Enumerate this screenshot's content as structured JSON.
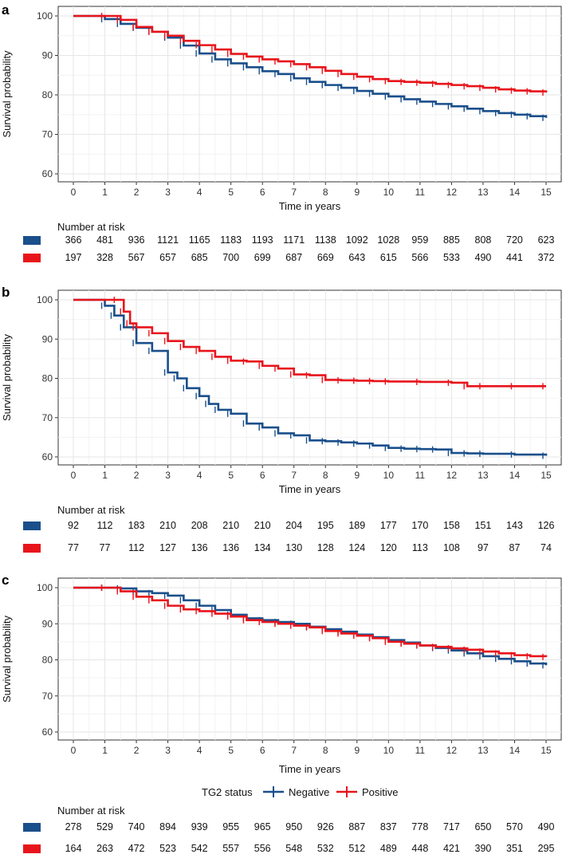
{
  "colors": {
    "negative": "#1a4f8b",
    "positive": "#e8141b",
    "grid_major": "#e6e6e6",
    "grid_minor": "#f3f3f3",
    "border": "#333333"
  },
  "legend": {
    "title": "TG2 status",
    "items": [
      "Negative",
      "Positive"
    ]
  },
  "chart_data": [
    {
      "type": "line",
      "panel": "a",
      "xlabel": "Time in years",
      "ylabel": "Survival probability",
      "xlim": [
        0,
        15
      ],
      "ylim": [
        60,
        100
      ],
      "x_ticks": [
        0,
        1,
        2,
        3,
        4,
        5,
        6,
        7,
        8,
        9,
        10,
        11,
        12,
        13,
        14,
        15
      ],
      "y_ticks": [
        60,
        70,
        80,
        90,
        100
      ],
      "series": [
        {
          "name": "Negative",
          "color": "#1a4f8b",
          "x": [
            0,
            0.7,
            1,
            1.5,
            2,
            2.5,
            3,
            3.5,
            4,
            4.5,
            5,
            5.5,
            6,
            6.5,
            7,
            7.5,
            8,
            8.5,
            9,
            9.5,
            10,
            10.5,
            11,
            11.5,
            12,
            12.5,
            13,
            13.5,
            14,
            14.5,
            15
          ],
          "y": [
            100,
            100,
            99.2,
            98,
            97,
            96,
            94.5,
            92.5,
            90.5,
            89,
            88,
            87,
            86,
            85.3,
            84.2,
            83.3,
            82.5,
            81.8,
            81,
            80.3,
            79.6,
            78.9,
            78.3,
            77.7,
            77.1,
            76.5,
            75.9,
            75.4,
            75,
            74.6,
            74.2
          ]
        },
        {
          "name": "Positive",
          "color": "#e8141b",
          "x": [
            0,
            0.7,
            1,
            1.5,
            2,
            2.5,
            3,
            3.5,
            4,
            4.5,
            5,
            5.5,
            6,
            6.5,
            7,
            7.5,
            8,
            8.5,
            9,
            9.5,
            10,
            10.5,
            11,
            11.5,
            12,
            12.5,
            13,
            13.5,
            14,
            14.5,
            15
          ],
          "y": [
            100,
            100,
            100,
            99,
            97.2,
            96,
            95,
            93.7,
            92.6,
            91.5,
            90.4,
            89.7,
            89,
            88.5,
            87.8,
            87,
            86.1,
            85.3,
            84.6,
            84,
            83.5,
            83.3,
            83.1,
            82.8,
            82.5,
            82.2,
            81.8,
            81.4,
            81.1,
            80.9,
            80.6
          ]
        }
      ],
      "risk_table": {
        "title": "Number at risk",
        "rows": [
          {
            "name": "Negative",
            "values": [
              366,
              481,
              936,
              1121,
              1165,
              1183,
              1193,
              1171,
              1138,
              1092,
              1028,
              959,
              885,
              808,
              720,
              623
            ]
          },
          {
            "name": "Positive",
            "values": [
              197,
              328,
              567,
              657,
              685,
              700,
              699,
              687,
              669,
              643,
              615,
              566,
              533,
              490,
              441,
              372
            ]
          }
        ]
      }
    },
    {
      "type": "line",
      "panel": "b",
      "xlabel": "Time in years",
      "ylabel": "Survival probability",
      "xlim": [
        0,
        15
      ],
      "ylim": [
        60,
        100
      ],
      "x_ticks": [
        0,
        1,
        2,
        3,
        4,
        5,
        6,
        7,
        8,
        9,
        10,
        11,
        12,
        13,
        14,
        15
      ],
      "y_ticks": [
        60,
        70,
        80,
        90,
        100
      ],
      "series": [
        {
          "name": "Negative",
          "color": "#1a4f8b",
          "x": [
            0,
            0.7,
            1,
            1.3,
            1.6,
            2,
            2.5,
            3,
            3.3,
            3.6,
            4,
            4.3,
            4.6,
            5,
            5.5,
            6,
            6.5,
            7,
            7.5,
            8,
            8.5,
            9,
            9.5,
            10,
            10.5,
            11,
            11.5,
            12,
            12.5,
            13,
            14,
            15
          ],
          "y": [
            100,
            100,
            98.5,
            96,
            93,
            89,
            87,
            81.5,
            80,
            77.5,
            75.5,
            73.5,
            72,
            71,
            68.5,
            67.5,
            66,
            65.5,
            64.2,
            64,
            63.7,
            63.4,
            62.9,
            62.3,
            62.1,
            62,
            61.9,
            61,
            60.9,
            60.8,
            60.6,
            60.3
          ]
        },
        {
          "name": "Positive",
          "color": "#e8141b",
          "x": [
            0,
            0.7,
            1.4,
            1.6,
            1.8,
            2,
            2.5,
            3,
            3.5,
            4,
            4.5,
            5,
            5.5,
            6,
            6.5,
            7,
            7.5,
            8,
            8.5,
            9,
            9.5,
            10,
            11,
            12,
            12.5,
            13,
            14,
            15
          ],
          "y": [
            100,
            100,
            100,
            97,
            94,
            93,
            91.5,
            89.5,
            88,
            87,
            85.5,
            84.5,
            84.3,
            83.2,
            82.5,
            81,
            80.8,
            79.6,
            79.5,
            79.4,
            79.3,
            79.2,
            79.1,
            78.9,
            78,
            78,
            78,
            78
          ]
        }
      ],
      "risk_table": {
        "title": "Number at risk",
        "rows": [
          {
            "name": "Negative",
            "values": [
              92,
              112,
              183,
              210,
              208,
              210,
              210,
              204,
              195,
              189,
              177,
              170,
              158,
              151,
              143,
              126
            ]
          },
          {
            "name": "Positive",
            "values": [
              77,
              77,
              112,
              127,
              136,
              136,
              134,
              130,
              128,
              124,
              120,
              113,
              108,
              97,
              87,
              74
            ]
          }
        ]
      }
    },
    {
      "type": "line",
      "panel": "c",
      "xlabel": "Time in years",
      "ylabel": "Survival probability",
      "xlim": [
        0,
        15
      ],
      "ylim": [
        60,
        100
      ],
      "x_ticks": [
        0,
        1,
        2,
        3,
        4,
        5,
        6,
        7,
        8,
        9,
        10,
        11,
        12,
        13,
        14,
        15
      ],
      "y_ticks": [
        60,
        70,
        80,
        90,
        100
      ],
      "series": [
        {
          "name": "Negative",
          "color": "#1a4f8b",
          "x": [
            0,
            0.7,
            1,
            1.5,
            2,
            2.5,
            3,
            3.5,
            4,
            4.5,
            5,
            5.5,
            6,
            6.5,
            7,
            7.5,
            8,
            8.5,
            9,
            9.5,
            10,
            10.5,
            11,
            11.5,
            12,
            12.5,
            13,
            13.5,
            14,
            14.5,
            15
          ],
          "y": [
            100,
            100,
            100,
            99.8,
            99,
            98.5,
            97.8,
            96.5,
            95,
            93.8,
            92.5,
            91.5,
            91,
            90.5,
            90,
            89.2,
            88.5,
            87.8,
            87,
            86.3,
            85.5,
            84.8,
            84,
            83.3,
            82.6,
            81.8,
            81,
            80.3,
            79.6,
            79,
            78.5
          ]
        },
        {
          "name": "Positive",
          "color": "#e8141b",
          "x": [
            0,
            0.7,
            1,
            1.5,
            2,
            2.5,
            3,
            3.5,
            4,
            4.5,
            5,
            5.5,
            6,
            6.5,
            7,
            7.5,
            8,
            8.5,
            9,
            9.5,
            10,
            10.5,
            11,
            11.5,
            12,
            12.5,
            13,
            13.5,
            14,
            14.5,
            15
          ],
          "y": [
            100,
            100,
            100,
            99,
            97.5,
            96.5,
            95,
            94,
            93.5,
            92.8,
            92,
            91,
            90.5,
            90,
            89.5,
            89,
            88,
            87.3,
            86.7,
            86,
            85,
            84.5,
            84,
            83.6,
            83.2,
            82.8,
            82.3,
            81.8,
            81.3,
            81,
            80.8
          ]
        }
      ],
      "risk_table": {
        "title": "Number at risk",
        "rows": [
          {
            "name": "Negative",
            "values": [
              278,
              529,
              740,
              894,
              939,
              955,
              965,
              950,
              926,
              887,
              837,
              778,
              717,
              650,
              570,
              490
            ]
          },
          {
            "name": "Positive",
            "values": [
              164,
              263,
              472,
              523,
              542,
              557,
              556,
              548,
              532,
              512,
              489,
              448,
              421,
              390,
              351,
              295
            ]
          }
        ]
      }
    }
  ]
}
